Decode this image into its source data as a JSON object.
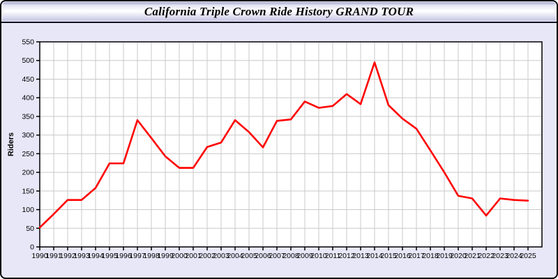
{
  "header": {
    "title": "California Triple Crown Ride History GRAND TOUR"
  },
  "chart_data": {
    "type": "line",
    "title": "",
    "xlabel": "",
    "ylabel": "Riders",
    "x": [
      1990,
      1991,
      1992,
      1993,
      1994,
      1995,
      1996,
      1997,
      1998,
      1999,
      2000,
      2001,
      2002,
      2003,
      2004,
      2005,
      2006,
      2007,
      2008,
      2009,
      2010,
      2011,
      2012,
      2013,
      2014,
      2015,
      2016,
      2017,
      2018,
      2019,
      2020,
      2021,
      2022,
      2023,
      2024,
      2025
    ],
    "series": [
      {
        "name": "Riders",
        "values": [
          52,
          88,
          126,
          126,
          158,
          224,
          224,
          340,
          292,
          243,
          212,
          212,
          268,
          280,
          340,
          308,
          267,
          338,
          342,
          390,
          373,
          378,
          410,
          383,
          495,
          380,
          344,
          317,
          259,
          200,
          137,
          130,
          84,
          130,
          126,
          124
        ]
      }
    ],
    "ylim": [
      0,
      550
    ],
    "ytick_step": 50,
    "grid": true,
    "legend": "none",
    "line_color": "#ff0000",
    "plot_bg": "#ffffff",
    "panel_bg": "#e7e7f8",
    "grid_color": "#c9c9c9",
    "axis_color": "#000000"
  }
}
